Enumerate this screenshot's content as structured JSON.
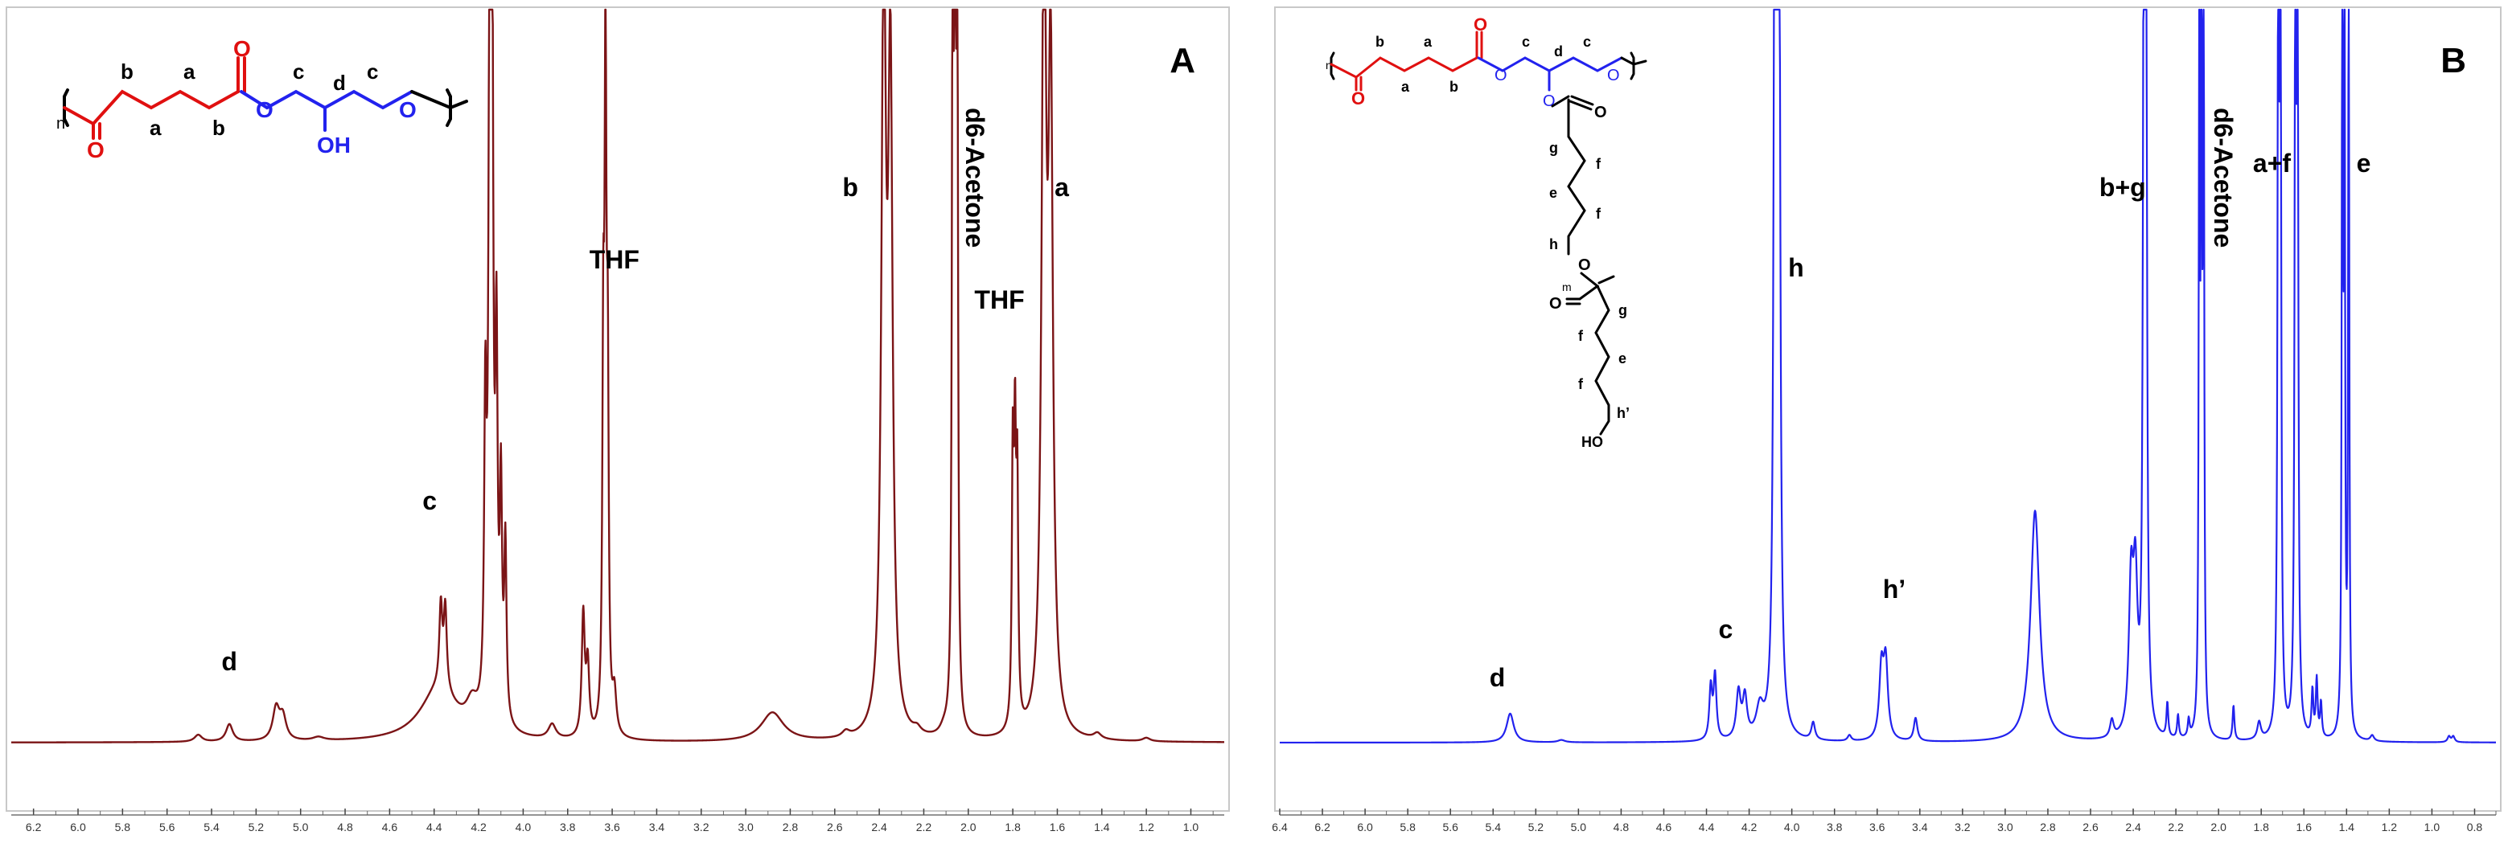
{
  "chart_data": [
    {
      "type": "line",
      "panel_label": "A",
      "color": "#7b1416",
      "xlabel": "",
      "ylabel": "",
      "xlim": [
        6.3,
        0.85
      ],
      "x_reversed": true,
      "ticks": [
        "6.2",
        "6.0",
        "5.8",
        "5.6",
        "5.4",
        "5.2",
        "5.0",
        "4.8",
        "4.6",
        "4.4",
        "4.2",
        "4.0",
        "3.8",
        "3.6",
        "3.4",
        "3.2",
        "3.0",
        "2.8",
        "2.6",
        "2.4",
        "2.2",
        "2.0",
        "1.8",
        "1.6",
        "1.4",
        "1.2",
        "1.0"
      ],
      "peaks": [
        {
          "ppm": 5.46,
          "height": 0.012,
          "width": 0.02
        },
        {
          "ppm": 5.32,
          "height": 0.03,
          "width": 0.018
        },
        {
          "ppm": 5.11,
          "height": 0.055,
          "width": 0.018
        },
        {
          "ppm": 5.08,
          "height": 0.04,
          "width": 0.018
        },
        {
          "ppm": 4.92,
          "height": 0.006,
          "width": 0.03
        },
        {
          "ppm": 4.38,
          "height": 0.09,
          "width": 0.1
        },
        {
          "ppm": 4.37,
          "height": 0.14,
          "width": 0.008
        },
        {
          "ppm": 4.35,
          "height": 0.14,
          "width": 0.008
        },
        {
          "ppm": 4.23,
          "height": 0.04,
          "width": 0.03
        },
        {
          "ppm": 4.17,
          "height": 0.5,
          "width": 0.006
        },
        {
          "ppm": 4.15,
          "height": 1.3,
          "width": 0.006
        },
        {
          "ppm": 4.14,
          "height": 1.25,
          "width": 0.006
        },
        {
          "ppm": 4.12,
          "height": 0.6,
          "width": 0.006
        },
        {
          "ppm": 4.1,
          "height": 0.38,
          "width": 0.006
        },
        {
          "ppm": 4.08,
          "height": 0.3,
          "width": 0.006
        },
        {
          "ppm": 3.87,
          "height": 0.025,
          "width": 0.02
        },
        {
          "ppm": 3.73,
          "height": 0.21,
          "width": 0.008
        },
        {
          "ppm": 3.71,
          "height": 0.12,
          "width": 0.008
        },
        {
          "ppm": 3.64,
          "height": 0.6,
          "width": 0.005
        },
        {
          "ppm": 3.63,
          "height": 1.1,
          "width": 0.005
        },
        {
          "ppm": 3.62,
          "height": 0.55,
          "width": 0.005
        },
        {
          "ppm": 3.59,
          "height": 0.07,
          "width": 0.01
        },
        {
          "ppm": 2.88,
          "height": 0.05,
          "width": 0.06
        },
        {
          "ppm": 2.55,
          "height": 0.01,
          "width": 0.02
        },
        {
          "ppm": 2.38,
          "height": 1.3,
          "width": 0.012
        },
        {
          "ppm": 2.35,
          "height": 1.1,
          "width": 0.012
        },
        {
          "ppm": 2.23,
          "height": 0.01,
          "width": 0.02
        },
        {
          "ppm": 2.11,
          "height": 0.01,
          "width": 0.02
        },
        {
          "ppm": 2.07,
          "height": 1.4,
          "width": 0.004
        },
        {
          "ppm": 2.06,
          "height": 1.4,
          "width": 0.004
        },
        {
          "ppm": 2.05,
          "height": 1.4,
          "width": 0.004
        },
        {
          "ppm": 1.8,
          "height": 0.45,
          "width": 0.005
        },
        {
          "ppm": 1.79,
          "height": 0.45,
          "width": 0.005
        },
        {
          "ppm": 1.78,
          "height": 0.4,
          "width": 0.005
        },
        {
          "ppm": 1.66,
          "height": 1.4,
          "width": 0.012
        },
        {
          "ppm": 1.63,
          "height": 1.1,
          "width": 0.012
        },
        {
          "ppm": 1.42,
          "height": 0.01,
          "width": 0.02
        },
        {
          "ppm": 1.2,
          "height": 0.006,
          "width": 0.02
        }
      ],
      "annotations": [
        {
          "text": "d",
          "ppm": 5.32,
          "level": 0.09,
          "rotated": false,
          "bold": true
        },
        {
          "text": "c",
          "ppm": 4.42,
          "level": 0.29,
          "rotated": false,
          "bold": true
        },
        {
          "text": "THF",
          "ppm": 3.59,
          "level": 0.59,
          "rotated": false,
          "bold": true
        },
        {
          "text": "b",
          "ppm": 2.53,
          "level": 0.68,
          "rotated": false,
          "bold": true
        },
        {
          "text": "d6-Acetone",
          "ppm": 2.01,
          "level": 0.79,
          "rotated": true,
          "bold": true
        },
        {
          "text": "THF",
          "ppm": 1.86,
          "level": 0.54,
          "rotated": false,
          "bold": true
        },
        {
          "text": "a",
          "ppm": 1.58,
          "level": 0.68,
          "rotated": false,
          "bold": true
        }
      ],
      "structure_labels": [
        "b",
        "a",
        "c",
        "d",
        "c",
        "a",
        "b",
        "n",
        "O",
        "O",
        "O",
        "O",
        "OH"
      ]
    },
    {
      "type": "line",
      "panel_label": "B",
      "color": "#2222ee",
      "xlabel": "",
      "ylabel": "",
      "xlim": [
        6.4,
        0.7
      ],
      "x_reversed": true,
      "ticks": [
        "6.4",
        "6.2",
        "6.0",
        "5.8",
        "5.6",
        "5.4",
        "5.2",
        "5.0",
        "4.8",
        "4.6",
        "4.4",
        "4.2",
        "4.0",
        "3.8",
        "3.6",
        "3.4",
        "3.2",
        "3.0",
        "2.8",
        "2.6",
        "2.4",
        "2.2",
        "2.0",
        "1.8",
        "1.6",
        "1.4",
        "1.2",
        "1.0",
        "0.8"
      ],
      "peaks": [
        {
          "ppm": 5.32,
          "height": 0.05,
          "width": 0.02
        },
        {
          "ppm": 5.08,
          "height": 0.004,
          "width": 0.02
        },
        {
          "ppm": 4.38,
          "height": 0.09,
          "width": 0.008
        },
        {
          "ppm": 4.36,
          "height": 0.11,
          "width": 0.008
        },
        {
          "ppm": 4.25,
          "height": 0.08,
          "width": 0.012
        },
        {
          "ppm": 4.22,
          "height": 0.07,
          "width": 0.012
        },
        {
          "ppm": 4.15,
          "height": 0.05,
          "width": 0.02
        },
        {
          "ppm": 4.08,
          "height": 1.4,
          "width": 0.006
        },
        {
          "ppm": 4.07,
          "height": 1.4,
          "width": 0.006
        },
        {
          "ppm": 4.06,
          "height": 1.4,
          "width": 0.006
        },
        {
          "ppm": 3.9,
          "height": 0.03,
          "width": 0.01
        },
        {
          "ppm": 3.73,
          "height": 0.01,
          "width": 0.01
        },
        {
          "ppm": 3.58,
          "height": 0.12,
          "width": 0.012
        },
        {
          "ppm": 3.56,
          "height": 0.13,
          "width": 0.012
        },
        {
          "ppm": 3.42,
          "height": 0.04,
          "width": 0.01
        },
        {
          "ppm": 2.86,
          "height": 0.4,
          "width": 0.025
        },
        {
          "ppm": 2.5,
          "height": 0.03,
          "width": 0.01
        },
        {
          "ppm": 2.41,
          "height": 0.25,
          "width": 0.012
        },
        {
          "ppm": 2.39,
          "height": 0.25,
          "width": 0.012
        },
        {
          "ppm": 2.35,
          "height": 1.4,
          "width": 0.005
        },
        {
          "ppm": 2.34,
          "height": 1.4,
          "width": 0.005
        },
        {
          "ppm": 2.24,
          "height": 0.06,
          "width": 0.005
        },
        {
          "ppm": 2.19,
          "height": 0.04,
          "width": 0.005
        },
        {
          "ppm": 2.14,
          "height": 0.03,
          "width": 0.005
        },
        {
          "ppm": 2.09,
          "height": 1.4,
          "width": 0.003
        },
        {
          "ppm": 2.08,
          "height": 1.4,
          "width": 0.003
        },
        {
          "ppm": 2.07,
          "height": 1.4,
          "width": 0.003
        },
        {
          "ppm": 1.93,
          "height": 0.06,
          "width": 0.005
        },
        {
          "ppm": 1.81,
          "height": 0.03,
          "width": 0.01
        },
        {
          "ppm": 1.72,
          "height": 1.4,
          "width": 0.004
        },
        {
          "ppm": 1.71,
          "height": 1.4,
          "width": 0.004
        },
        {
          "ppm": 1.64,
          "height": 1.4,
          "width": 0.004
        },
        {
          "ppm": 1.63,
          "height": 1.4,
          "width": 0.004
        },
        {
          "ppm": 1.56,
          "height": 0.08,
          "width": 0.005
        },
        {
          "ppm": 1.54,
          "height": 0.1,
          "width": 0.005
        },
        {
          "ppm": 1.52,
          "height": 0.06,
          "width": 0.005
        },
        {
          "ppm": 1.42,
          "height": 1.4,
          "width": 0.003
        },
        {
          "ppm": 1.41,
          "height": 1.4,
          "width": 0.003
        },
        {
          "ppm": 1.39,
          "height": 1.4,
          "width": 0.003
        },
        {
          "ppm": 1.28,
          "height": 0.01,
          "width": 0.01
        },
        {
          "ppm": 0.92,
          "height": 0.01,
          "width": 0.008
        },
        {
          "ppm": 0.9,
          "height": 0.01,
          "width": 0.008
        }
      ],
      "annotations": [
        {
          "text": "d",
          "ppm": 5.38,
          "level": 0.07,
          "rotated": false,
          "bold": true
        },
        {
          "text": "c",
          "ppm": 4.31,
          "level": 0.13,
          "rotated": false,
          "bold": true
        },
        {
          "text": "h",
          "ppm": 3.98,
          "level": 0.58,
          "rotated": false,
          "bold": true
        },
        {
          "text": "h’",
          "ppm": 3.52,
          "level": 0.18,
          "rotated": false,
          "bold": true
        },
        {
          "text": "b+g",
          "ppm": 2.45,
          "level": 0.68,
          "rotated": false,
          "bold": true
        },
        {
          "text": "d6-Acetone",
          "ppm": 2.02,
          "level": 0.79,
          "rotated": true,
          "bold": true
        },
        {
          "text": "a+f",
          "ppm": 1.75,
          "level": 0.71,
          "rotated": false,
          "bold": true
        },
        {
          "text": "e",
          "ppm": 1.32,
          "level": 0.71,
          "rotated": false,
          "bold": true
        }
      ],
      "structure_labels": [
        "b",
        "a",
        "c",
        "d",
        "c",
        "a",
        "b",
        "n",
        "O",
        "O",
        "O",
        "O",
        "O",
        "g",
        "f",
        "e",
        "f",
        "h",
        "O",
        "m",
        "O",
        "g",
        "e",
        "f",
        "f",
        "h’",
        "HO"
      ]
    }
  ]
}
